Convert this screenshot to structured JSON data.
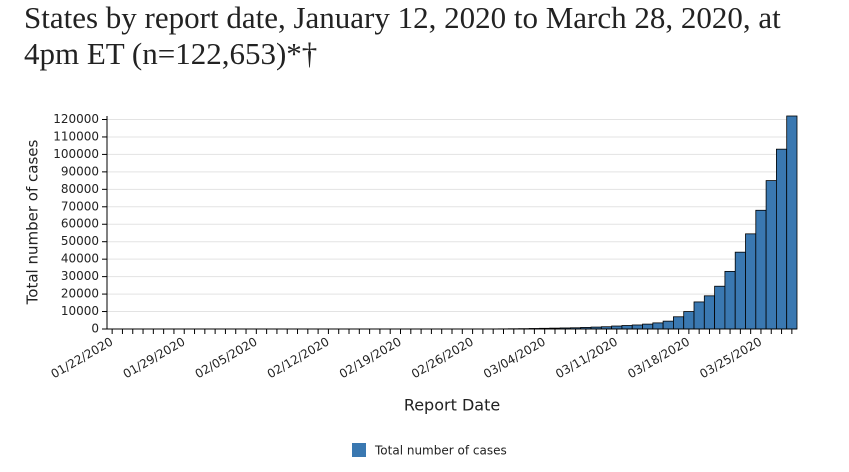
{
  "chart_data": {
    "type": "bar",
    "title": "States by report date, January 12, 2020 to March 28, 2020, at 4pm ET (n=122,653)*†",
    "x_label": "Report Date",
    "y_label": "Total number of cases",
    "categories": [
      "01/22/2020",
      null,
      null,
      null,
      null,
      null,
      null,
      "01/29/2020",
      null,
      null,
      null,
      null,
      null,
      null,
      "02/05/2020",
      null,
      null,
      null,
      null,
      null,
      null,
      "02/12/2020",
      null,
      null,
      null,
      null,
      null,
      null,
      "02/19/2020",
      null,
      null,
      null,
      null,
      null,
      null,
      "02/26/2020",
      null,
      null,
      null,
      null,
      null,
      null,
      "03/04/2020",
      null,
      null,
      null,
      null,
      null,
      null,
      "03/11/2020",
      null,
      null,
      null,
      null,
      null,
      null,
      "03/18/2020",
      null,
      null,
      null,
      null,
      null,
      null,
      "03/25/2020",
      null,
      null,
      null
    ],
    "series": [
      {
        "name": "Total number of cases",
        "color": "#3a78b1",
        "values": [
          1,
          1,
          1,
          1,
          1,
          1,
          1,
          1,
          2,
          2,
          2,
          2,
          3,
          3,
          3,
          3,
          3,
          3,
          3,
          3,
          3,
          3,
          3,
          3,
          3,
          3,
          3,
          3,
          3,
          5,
          8,
          10,
          12,
          15,
          20,
          30,
          40,
          60,
          90,
          150,
          200,
          300,
          400,
          500,
          600,
          700,
          900,
          1100,
          1300,
          1700,
          2000,
          2300,
          2800,
          3500,
          4500,
          7000,
          10000,
          15500,
          19000,
          24500,
          33000,
          44000,
          54500,
          68000,
          85000,
          103000,
          122000
        ]
      }
    ],
    "ylim": [
      0,
      122000
    ],
    "yticks": [
      0,
      10000,
      20000,
      30000,
      40000,
      50000,
      60000,
      70000,
      80000,
      90000,
      100000,
      110000,
      120000
    ],
    "grid": true
  }
}
